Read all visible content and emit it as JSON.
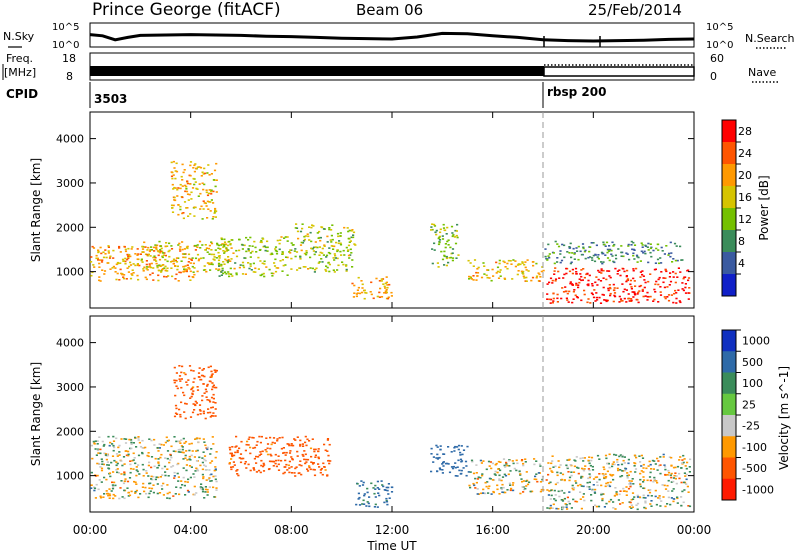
{
  "header": {
    "station": "Prince George (fitACF)",
    "beam": "Beam 06",
    "date": "25/Feb/2014"
  },
  "noise_panel": {
    "left_label": "N.Sky",
    "right_label": "N.Search",
    "left_ticks": [
      "10^5",
      "10^0"
    ],
    "right_ticks": [
      "10^5",
      "10^0"
    ]
  },
  "freq_panel": {
    "left_label_top": "Freq.",
    "left_label_bottom": "[MHz]",
    "left_ticks": [
      "18",
      "8"
    ],
    "right_label": "Nave",
    "right_ticks": [
      "60",
      "0"
    ]
  },
  "cpid_panel": {
    "label": "CPID",
    "segments": [
      {
        "start_hour": 0,
        "label": "3503"
      },
      {
        "start_hour": 18,
        "label": "rbsp 200"
      }
    ]
  },
  "power_colorbar": {
    "label": "Power [dB]",
    "ticks": [
      "28",
      "24",
      "20",
      "16",
      "12",
      "8",
      "4"
    ],
    "colors": [
      "#ff0000",
      "#ff5500",
      "#ff9900",
      "#d6c400",
      "#74c000",
      "#3a8c5a",
      "#3a5aa0",
      "#1020c8"
    ]
  },
  "velocity_colorbar": {
    "label": "Velocity [m s^-1]",
    "ticks": [
      "1000",
      "500",
      "100",
      "25",
      "-25",
      "-100",
      "-500",
      "-1000"
    ],
    "colors": [
      "#1030c0",
      "#2e6aa8",
      "#3a8c5a",
      "#66c840",
      "#c8c8c8",
      "#ff9900",
      "#ff5500",
      "#ff1a00"
    ]
  },
  "chart_data": [
    {
      "type": "line",
      "name": "noise",
      "x": [
        0,
        0.5,
        1,
        1.5,
        2,
        3,
        4,
        5,
        6,
        7,
        8,
        9,
        10,
        11,
        12,
        13,
        14,
        15,
        16,
        17,
        18,
        19,
        20,
        21,
        22,
        23,
        24
      ],
      "y_sky": [
        2.6,
        2.3,
        1.3,
        1.9,
        2.4,
        2.5,
        2.6,
        2.5,
        2.4,
        2.2,
        2.1,
        1.9,
        1.7,
        1.6,
        1.5,
        2.0,
        2.9,
        2.8,
        2.3,
        1.9,
        1.3,
        1.1,
        1.0,
        1.1,
        1.2,
        1.4,
        1.5
      ],
      "ylim": [
        0,
        5
      ],
      "xlim": [
        0,
        24
      ]
    },
    {
      "type": "line",
      "name": "frequency",
      "x": [
        0,
        18,
        18,
        24
      ],
      "freq_mhz": [
        10.5,
        10.5,
        10.5,
        10.5
      ],
      "nave": [
        22,
        22,
        37,
        37
      ],
      "ylim": [
        8,
        18
      ],
      "xlim": [
        0,
        24
      ]
    },
    {
      "type": "heatmap",
      "name": "power",
      "xlabel": "",
      "ylabel": "Slant Range [km]",
      "xlim": [
        0,
        24
      ],
      "ylim": [
        180,
        4600
      ],
      "y_ticks": [
        1000,
        2000,
        3000,
        4000
      ],
      "regions": [
        {
          "t": [
            0.0,
            4.2
          ],
          "r": [
            800,
            1600
          ],
          "db": 20
        },
        {
          "t": [
            2.0,
            5.5
          ],
          "r": [
            1000,
            1700
          ],
          "db": 16
        },
        {
          "t": [
            5.0,
            8.0
          ],
          "r": [
            900,
            1800
          ],
          "db": 14
        },
        {
          "t": [
            3.2,
            5.0
          ],
          "r": [
            2200,
            3500
          ],
          "db": 18
        },
        {
          "t": [
            8.0,
            10.5
          ],
          "r": [
            1000,
            2100
          ],
          "db": 14
        },
        {
          "t": [
            10.3,
            12.0
          ],
          "r": [
            400,
            900
          ],
          "db": 20
        },
        {
          "t": [
            13.5,
            14.6
          ],
          "r": [
            1100,
            2100
          ],
          "db": 12
        },
        {
          "t": [
            15.0,
            18.0
          ],
          "r": [
            800,
            1300
          ],
          "db": 18
        },
        {
          "t": [
            18.1,
            23.8
          ],
          "r": [
            300,
            1100
          ],
          "db": 28
        },
        {
          "t": [
            18.0,
            23.5
          ],
          "r": [
            1200,
            1700
          ],
          "db": 8
        }
      ]
    },
    {
      "type": "heatmap",
      "name": "velocity",
      "xlabel": "Time UT",
      "ylabel": "Slant Range [km]",
      "xlim": [
        0,
        24
      ],
      "ylim": [
        180,
        4600
      ],
      "y_ticks": [
        1000,
        2000,
        3000,
        4000
      ],
      "x_tick_labels": [
        "00:00",
        "04:00",
        "08:00",
        "12:00",
        "16:00",
        "20:00",
        "00:00"
      ],
      "regions": [
        {
          "t": [
            0.0,
            5.0
          ],
          "r": [
            500,
            1900
          ],
          "v": 0
        },
        {
          "t": [
            5.5,
            9.5
          ],
          "r": [
            1000,
            1900
          ],
          "v": -200
        },
        {
          "t": [
            3.3,
            5.0
          ],
          "r": [
            2300,
            3500
          ],
          "v": -200
        },
        {
          "t": [
            10.5,
            12.0
          ],
          "r": [
            300,
            900
          ],
          "v": 150
        },
        {
          "t": [
            13.5,
            15.0
          ],
          "r": [
            1000,
            1700
          ],
          "v": 300
        },
        {
          "t": [
            15.0,
            18.0
          ],
          "r": [
            600,
            1400
          ],
          "v": 0
        },
        {
          "t": [
            18.1,
            23.8
          ],
          "r": [
            250,
            1500
          ],
          "v": 0
        }
      ]
    }
  ]
}
